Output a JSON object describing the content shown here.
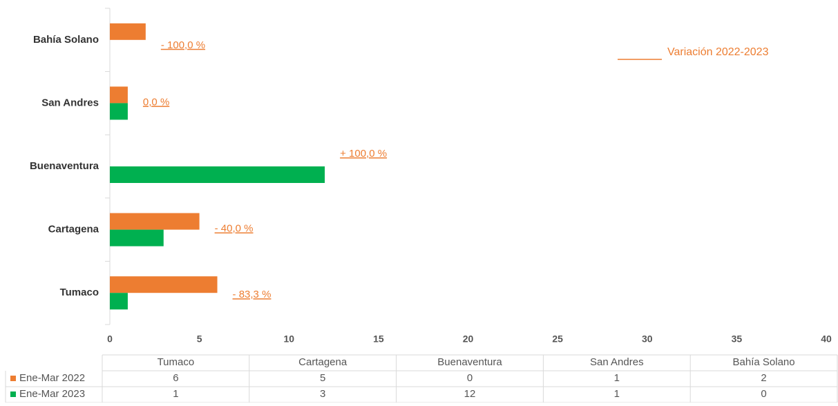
{
  "chart_data": {
    "type": "bar",
    "orientation": "horizontal",
    "categories": [
      "Tumaco",
      "Cartagena",
      "Buenaventura",
      "San Andres",
      "Bahía Solano"
    ],
    "series": [
      {
        "name": "Ene-Mar 2022",
        "color": "#ed7d31",
        "values": [
          6,
          5,
          0,
          1,
          2
        ]
      },
      {
        "name": "Ene-Mar 2023",
        "color": "#00b050",
        "values": [
          1,
          3,
          12,
          1,
          0
        ]
      }
    ],
    "xlim": [
      0,
      40
    ],
    "xticks": [
      0,
      5,
      10,
      15,
      20,
      25,
      30,
      35,
      40
    ],
    "annotations": [
      "- 83,3 %",
      "- 40,0 %",
      "+ 100,0 %",
      "0,0 %",
      "- 100,0 %"
    ],
    "annotation_legend": "Variación  2022-2023",
    "data_table": true
  }
}
